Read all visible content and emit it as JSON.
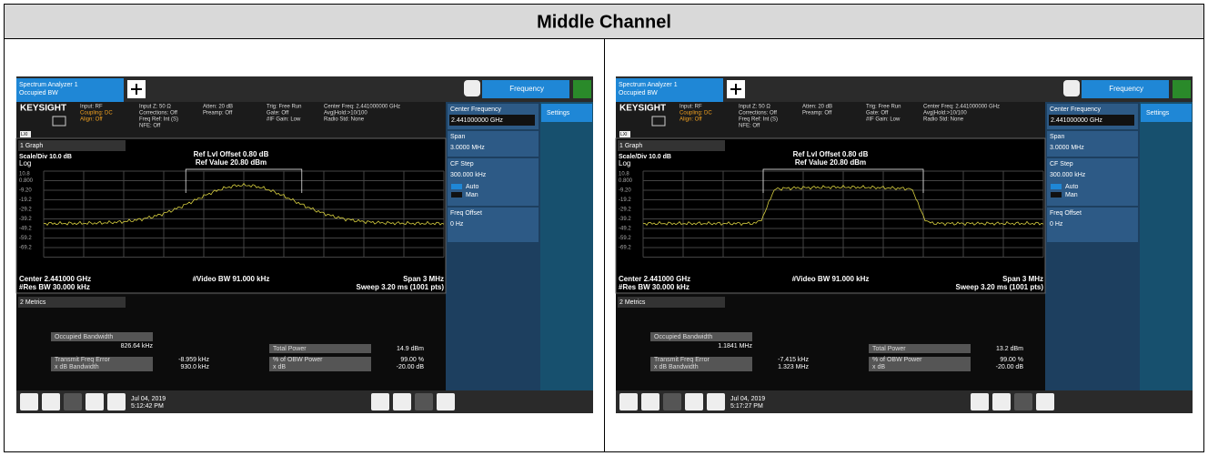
{
  "title": "Middle Channel",
  "screens": [
    {
      "tab": "Spectrum Analyzer 1",
      "mode": "Occupied BW",
      "menu": "Frequency",
      "brand": "KEYSIGHT",
      "lxi": "LXI",
      "info": [
        [
          "Input: RF",
          "Coupling: DC",
          "Align: Off"
        ],
        [
          "Input Z: 50 Ω",
          "Corrections: Off",
          "Freq Ref: Int (S)",
          "NFE: Off"
        ],
        [
          "Atten: 20 dB",
          "Preamp: Off"
        ],
        [
          "Trig: Free Run",
          "Gate: Off",
          "#IF Gain: Low"
        ],
        [
          "Center Freq: 2.441000000 GHz",
          "Avg|Hold:>10/100",
          "Radio Std: None"
        ]
      ],
      "graph_menu": "1 Graph",
      "scale": "Scale/Div 10.0 dB",
      "log": "Log",
      "ref": [
        "Ref Lvl Offset 0.80 dB",
        "Ref Value 20.80 dBm"
      ],
      "yaxis": [
        "10.8",
        "0.800",
        "-9.20",
        "-19.2",
        "-29.2",
        "-39.2",
        "-49.2",
        "-59.2",
        "-69.2"
      ],
      "center": "Center 2.441000 GHz",
      "res_bw": "#Res BW 30.000 kHz",
      "video_bw": "#Video BW 91.000 kHz",
      "span": "Span 3 MHz",
      "sweep": "Sweep 3.20 ms (1001 pts)",
      "metrics_menu": "2 Metrics",
      "obw_label": "Occupied Bandwidth",
      "obw": "826.64 kHz",
      "tfe_label": "Transmit Freq Error",
      "tfe": "-8.959 kHz",
      "xdb_bw_label": "x dB Bandwidth",
      "xdb_bw": "930.0 kHz",
      "tp_label": "Total Power",
      "tp": "14.9 dBm",
      "pct_label": "% of OBW Power",
      "pct": "99.00 %",
      "xdb_label": "x dB",
      "xdb": "-20.00 dB",
      "softkeys": {
        "cf": "Center Frequency",
        "cf_value": "2.441000000 GHz",
        "span": "Span",
        "span_value": "3.0000 MHz",
        "step": "CF Step",
        "step_value": "300.000 kHz",
        "auto": "Auto",
        "man": "Man",
        "offset": "Freq Offset",
        "offset_value": "0 Hz",
        "settings": "Settings"
      },
      "date": "Jul 04, 2019",
      "time": "5:12:42 PM"
    },
    {
      "tab": "Spectrum Analyzer 1",
      "mode": "Occupied BW",
      "menu": "Frequency",
      "brand": "KEYSIGHT",
      "lxi": "LXI",
      "info": [
        [
          "Input: RF",
          "Coupling: DC",
          "Align: Off"
        ],
        [
          "Input Z: 50 Ω",
          "Corrections: Off",
          "Freq Ref: Int (S)",
          "NFE: Off"
        ],
        [
          "Atten: 20 dB",
          "Preamp: Off"
        ],
        [
          "Trig: Free Run",
          "Gate: Off",
          "#IF Gain: Low"
        ],
        [
          "Center Freq: 2.441000000 GHz",
          "Avg|Hold:>10/100",
          "Radio Std: None"
        ]
      ],
      "graph_menu": "1 Graph",
      "scale": "Scale/Div 10.0 dB",
      "log": "Log",
      "ref": [
        "Ref Lvl Offset 0.80 dB",
        "Ref Value 20.80 dBm"
      ],
      "yaxis": [
        "10.8",
        "0.800",
        "-9.20",
        "-19.2",
        "-29.2",
        "-39.2",
        "-49.2",
        "-59.2",
        "-69.2"
      ],
      "center": "Center 2.441000 GHz",
      "res_bw": "#Res BW 30.000 kHz",
      "video_bw": "#Video BW 91.000 kHz",
      "span": "Span 3 MHz",
      "sweep": "Sweep 3.20 ms (1001 pts)",
      "metrics_menu": "2 Metrics",
      "obw_label": "Occupied Bandwidth",
      "obw": "1.1841 MHz",
      "tfe_label": "Transmit Freq Error",
      "tfe": "-7.415 kHz",
      "xdb_bw_label": "x dB Bandwidth",
      "xdb_bw": "1.323 MHz",
      "tp_label": "Total Power",
      "tp": "13.2 dBm",
      "pct_label": "% of OBW Power",
      "pct": "99.00 %",
      "xdb_label": "x dB",
      "xdb": "-20.00 dB",
      "softkeys": {
        "cf": "Center Frequency",
        "cf_value": "2.441000000 GHz",
        "span": "Span",
        "span_value": "3.0000 MHz",
        "step": "CF Step",
        "step_value": "300.000 kHz",
        "auto": "Auto",
        "man": "Man",
        "offset": "Freq Offset",
        "offset_value": "0 Hz",
        "settings": "Settings"
      },
      "date": "Jul 04, 2019",
      "time": "5:17:27 PM"
    }
  ]
}
